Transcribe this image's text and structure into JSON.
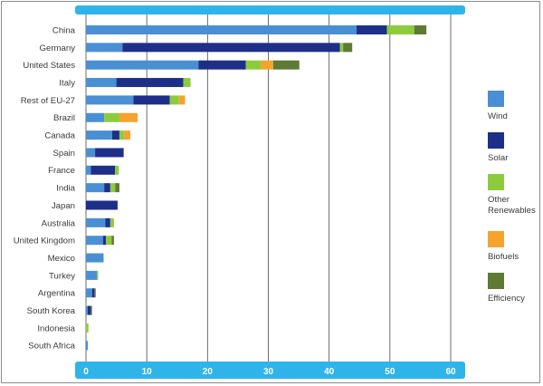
{
  "chart_data": {
    "type": "bar",
    "orientation": "horizontal",
    "stacked": true,
    "categories": [
      "China",
      "Germany",
      "United States",
      "Italy",
      "Rest of EU-27",
      "Brazil",
      "Canada",
      "Spain",
      "France",
      "India",
      "Japan",
      "Australia",
      "United Kingdom",
      "Mexico",
      "Turkey",
      "Argentina",
      "South Korea",
      "Indonesia",
      "South Africa"
    ],
    "series": [
      {
        "name": "Wind",
        "color": "#4a8fd4",
        "values": [
          44.5,
          6.0,
          18.5,
          5.0,
          7.8,
          3.0,
          4.3,
          1.5,
          0.8,
          3.0,
          0.0,
          3.2,
          2.8,
          2.9,
          1.8,
          1.0,
          0.3,
          0.0,
          0.3
        ]
      },
      {
        "name": "Solar",
        "color": "#1e2f8a",
        "values": [
          5.0,
          35.8,
          7.8,
          11.0,
          6.0,
          0.0,
          1.2,
          4.7,
          4.0,
          1.0,
          5.2,
          0.8,
          0.5,
          0.0,
          0.0,
          0.4,
          0.5,
          0.0,
          0.0
        ]
      },
      {
        "name": "Other Renewables",
        "color": "#8ccc3c",
        "values": [
          4.5,
          0.5,
          2.5,
          1.2,
          1.5,
          2.5,
          0.8,
          0.0,
          0.6,
          0.8,
          0.0,
          0.6,
          0.9,
          0.0,
          0.2,
          0.0,
          0.0,
          0.4,
          0.0
        ]
      },
      {
        "name": "Biofuels",
        "color": "#f5a32e",
        "values": [
          0.0,
          0.0,
          2.0,
          0.0,
          1.0,
          3.0,
          1.0,
          0.0,
          0.0,
          0.0,
          0.0,
          0.0,
          0.0,
          0.0,
          0.0,
          0.0,
          0.0,
          0.0,
          0.0
        ]
      },
      {
        "name": "Efficiency",
        "color": "#5e7a34",
        "values": [
          2.0,
          1.5,
          4.3,
          0.0,
          0.0,
          0.0,
          0.0,
          0.0,
          0.0,
          0.7,
          0.0,
          0.0,
          0.4,
          0.0,
          0.0,
          0.2,
          0.2,
          0.0,
          0.0
        ]
      }
    ],
    "xlim": [
      0,
      60
    ],
    "xticks": [
      0,
      10,
      20,
      30,
      40,
      50,
      60
    ],
    "grid": true,
    "legend_position": "right",
    "title": "",
    "xlabel": "",
    "ylabel": ""
  },
  "colors": {
    "band": "#2fb4ea",
    "gridline": "#4a4a4a"
  }
}
